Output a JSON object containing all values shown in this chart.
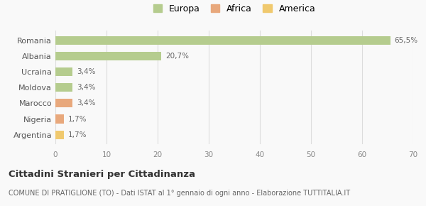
{
  "categories": [
    "Romania",
    "Albania",
    "Ucraina",
    "Moldova",
    "Marocco",
    "Nigeria",
    "Argentina"
  ],
  "values": [
    65.5,
    20.7,
    3.4,
    3.4,
    3.4,
    1.7,
    1.7
  ],
  "labels": [
    "65,5%",
    "20,7%",
    "3,4%",
    "3,4%",
    "3,4%",
    "1,7%",
    "1,7%"
  ],
  "colors": [
    "#b5cc8e",
    "#b5cc8e",
    "#b5cc8e",
    "#b5cc8e",
    "#e8a87c",
    "#e8a87c",
    "#f0c96e"
  ],
  "legend_labels": [
    "Europa",
    "Africa",
    "America"
  ],
  "legend_colors": [
    "#b5cc8e",
    "#e8a87c",
    "#f0c96e"
  ],
  "xlim": [
    0,
    70
  ],
  "xticks": [
    0,
    10,
    20,
    30,
    40,
    50,
    60,
    70
  ],
  "title": "Cittadini Stranieri per Cittadinanza",
  "subtitle": "COMUNE DI PRATIGLIONE (TO) - Dati ISTAT al 1° gennaio di ogni anno - Elaborazione TUTTITALIA.IT",
  "bg_color": "#f9f9f9",
  "grid_color": "#dddddd",
  "bar_height": 0.55
}
